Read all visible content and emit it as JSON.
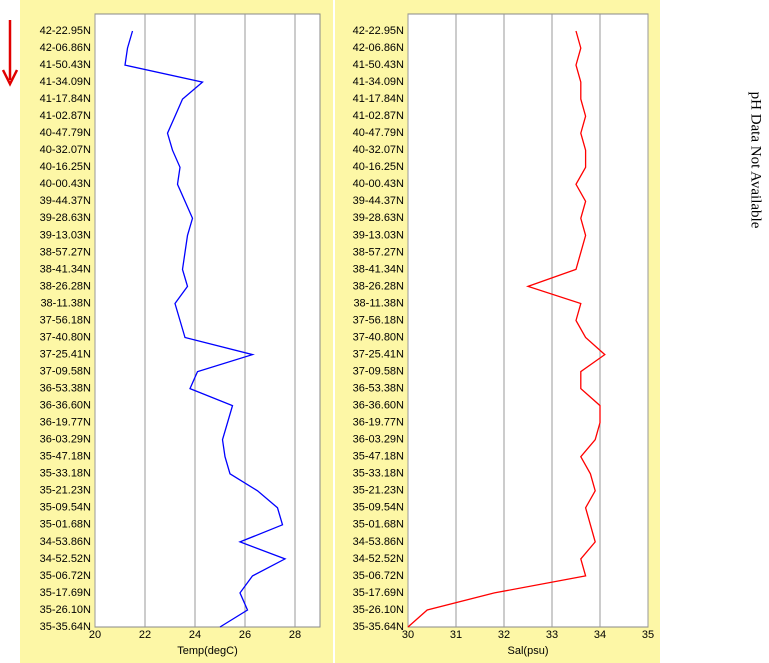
{
  "chart_data": [
    {
      "type": "line",
      "orientation": "horizontal",
      "xlabel": "Temp(degC)",
      "color": "#0000ff",
      "categories": [
        "42-22.95N",
        "42-06.86N",
        "41-50.43N",
        "41-34.09N",
        "41-17.84N",
        "41-02.87N",
        "40-47.79N",
        "40-32.07N",
        "40-16.25N",
        "40-00.43N",
        "39-44.37N",
        "39-28.63N",
        "39-13.03N",
        "38-57.27N",
        "38-41.34N",
        "38-26.28N",
        "38-11.38N",
        "37-56.18N",
        "37-40.80N",
        "37-25.41N",
        "37-09.58N",
        "36-53.38N",
        "36-36.60N",
        "36-19.77N",
        "36-03.29N",
        "35-47.18N",
        "35-33.18N",
        "35-21.23N",
        "35-09.54N",
        "35-01.68N",
        "34-53.86N",
        "34-52.52N",
        "35-06.72N",
        "35-17.69N",
        "35-26.10N",
        "35-35.64N"
      ],
      "values": [
        21.5,
        21.3,
        21.2,
        24.3,
        23.5,
        23.2,
        22.9,
        23.1,
        23.4,
        23.3,
        23.6,
        23.9,
        23.7,
        23.6,
        23.5,
        23.7,
        23.2,
        23.4,
        23.6,
        26.3,
        24.1,
        23.8,
        25.5,
        25.3,
        25.1,
        25.2,
        25.4,
        26.5,
        27.3,
        27.5,
        25.8,
        27.6,
        26.3,
        25.8,
        26.1,
        25.0
      ],
      "xlim": [
        20,
        29
      ],
      "xticks": [
        20,
        22,
        24,
        26,
        28
      ],
      "grid": true
    },
    {
      "type": "line",
      "orientation": "horizontal",
      "xlabel": "Sal(psu)",
      "color": "#ff0000",
      "categories": [
        "42-22.95N",
        "42-06.86N",
        "41-50.43N",
        "41-34.09N",
        "41-17.84N",
        "41-02.87N",
        "40-47.79N",
        "40-32.07N",
        "40-16.25N",
        "40-00.43N",
        "39-44.37N",
        "39-28.63N",
        "39-13.03N",
        "38-57.27N",
        "38-41.34N",
        "38-26.28N",
        "38-11.38N",
        "37-56.18N",
        "37-40.80N",
        "37-25.41N",
        "37-09.58N",
        "36-53.38N",
        "36-36.60N",
        "36-19.77N",
        "36-03.29N",
        "35-47.18N",
        "35-33.18N",
        "35-21.23N",
        "35-09.54N",
        "35-01.68N",
        "34-53.86N",
        "34-52.52N",
        "35-06.72N",
        "35-17.69N",
        "35-26.10N",
        "35-35.64N"
      ],
      "values": [
        33.5,
        33.6,
        33.5,
        33.6,
        33.6,
        33.7,
        33.6,
        33.7,
        33.7,
        33.5,
        33.7,
        33.6,
        33.7,
        33.6,
        33.5,
        32.5,
        33.6,
        33.5,
        33.7,
        34.1,
        33.6,
        33.6,
        34.0,
        34.0,
        33.9,
        33.6,
        33.8,
        33.9,
        33.7,
        33.8,
        33.9,
        33.6,
        33.7,
        31.8,
        30.4,
        30.0
      ],
      "xlim": [
        30,
        35
      ],
      "xticks": [
        30,
        31,
        32,
        33,
        34,
        35
      ],
      "grid": true
    }
  ],
  "annotation": "pH Data Not Available"
}
